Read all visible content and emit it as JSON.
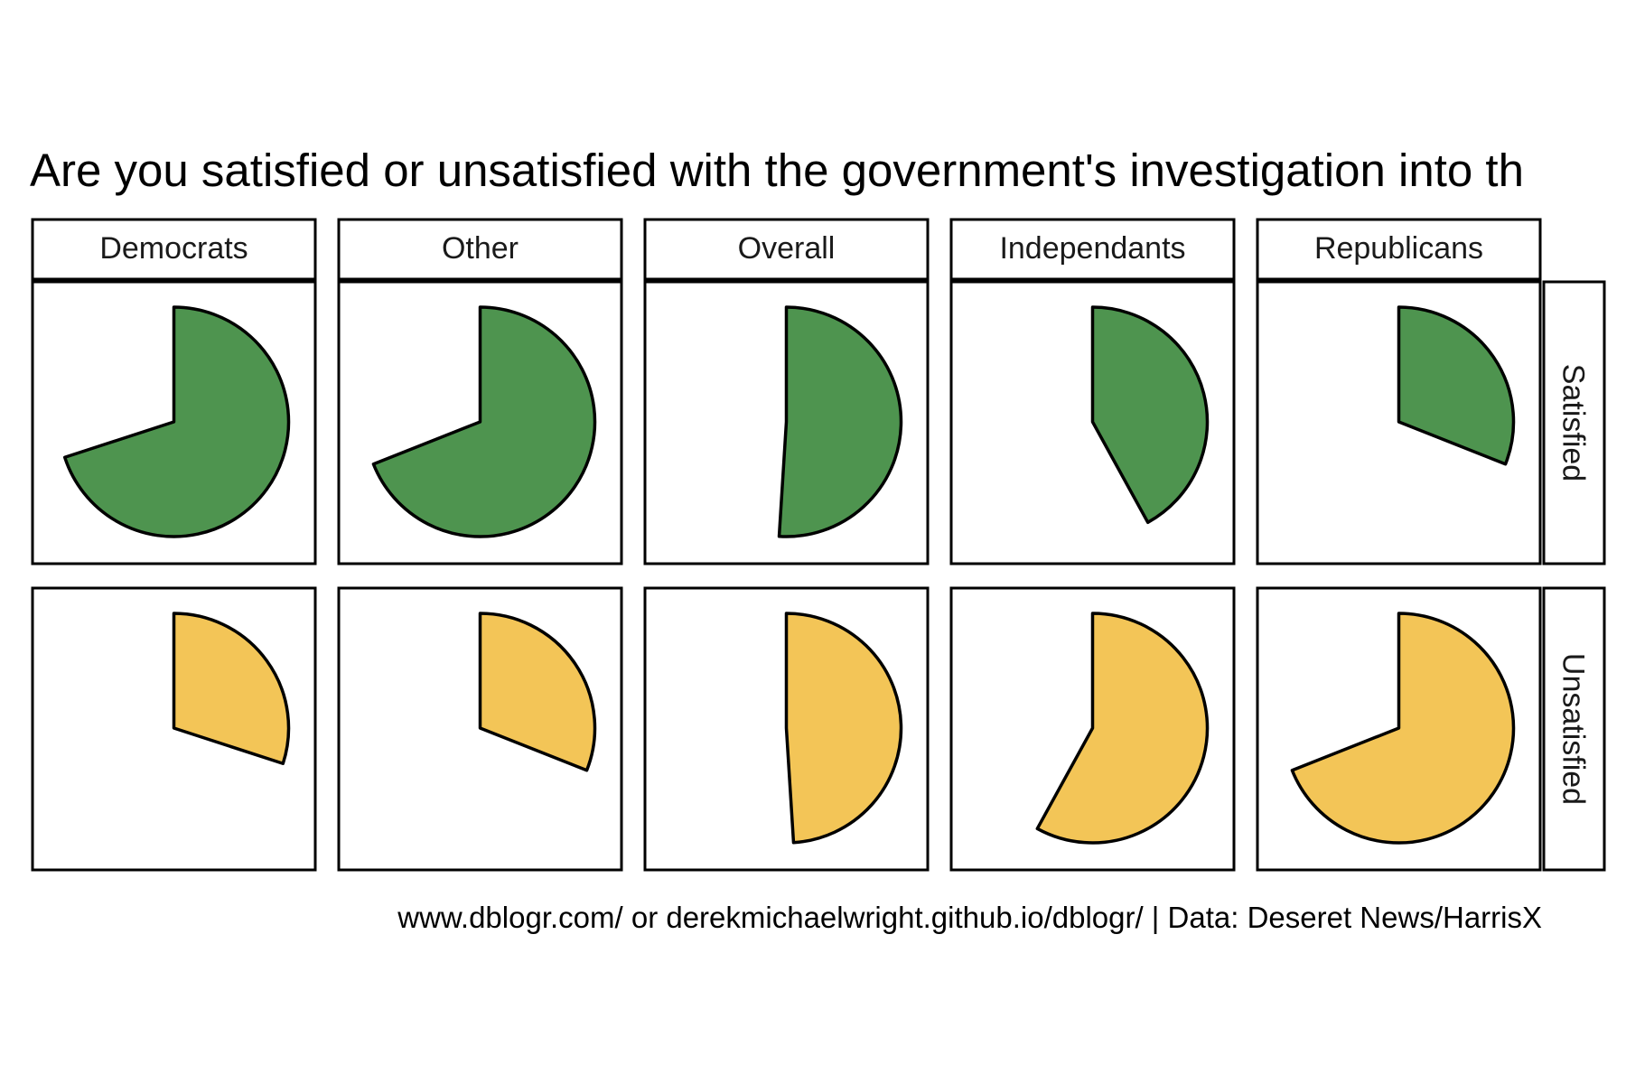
{
  "chart_data": {
    "type": "pie",
    "subtype": "faceted single-wedge polar bars",
    "title": "Are you satisfied or unsatisfied with the government's investigation into th",
    "caption": "www.dblogr.com/ or derekmichaelwright.github.io/dblogr/ | Data: Deseret News/HarrisX",
    "columns": [
      "Democrats",
      "Other",
      "Overall",
      "Independants",
      "Republicans"
    ],
    "rows": [
      "Satisfied",
      "Unsatisfied"
    ],
    "unit": "percent of respondents",
    "series": [
      {
        "name": "Satisfied",
        "color": "#4e944f",
        "values": [
          70,
          69,
          51,
          42,
          31
        ]
      },
      {
        "name": "Unsatisfied",
        "color": "#f3c557",
        "values": [
          30,
          31,
          49,
          58,
          69
        ]
      }
    ]
  }
}
